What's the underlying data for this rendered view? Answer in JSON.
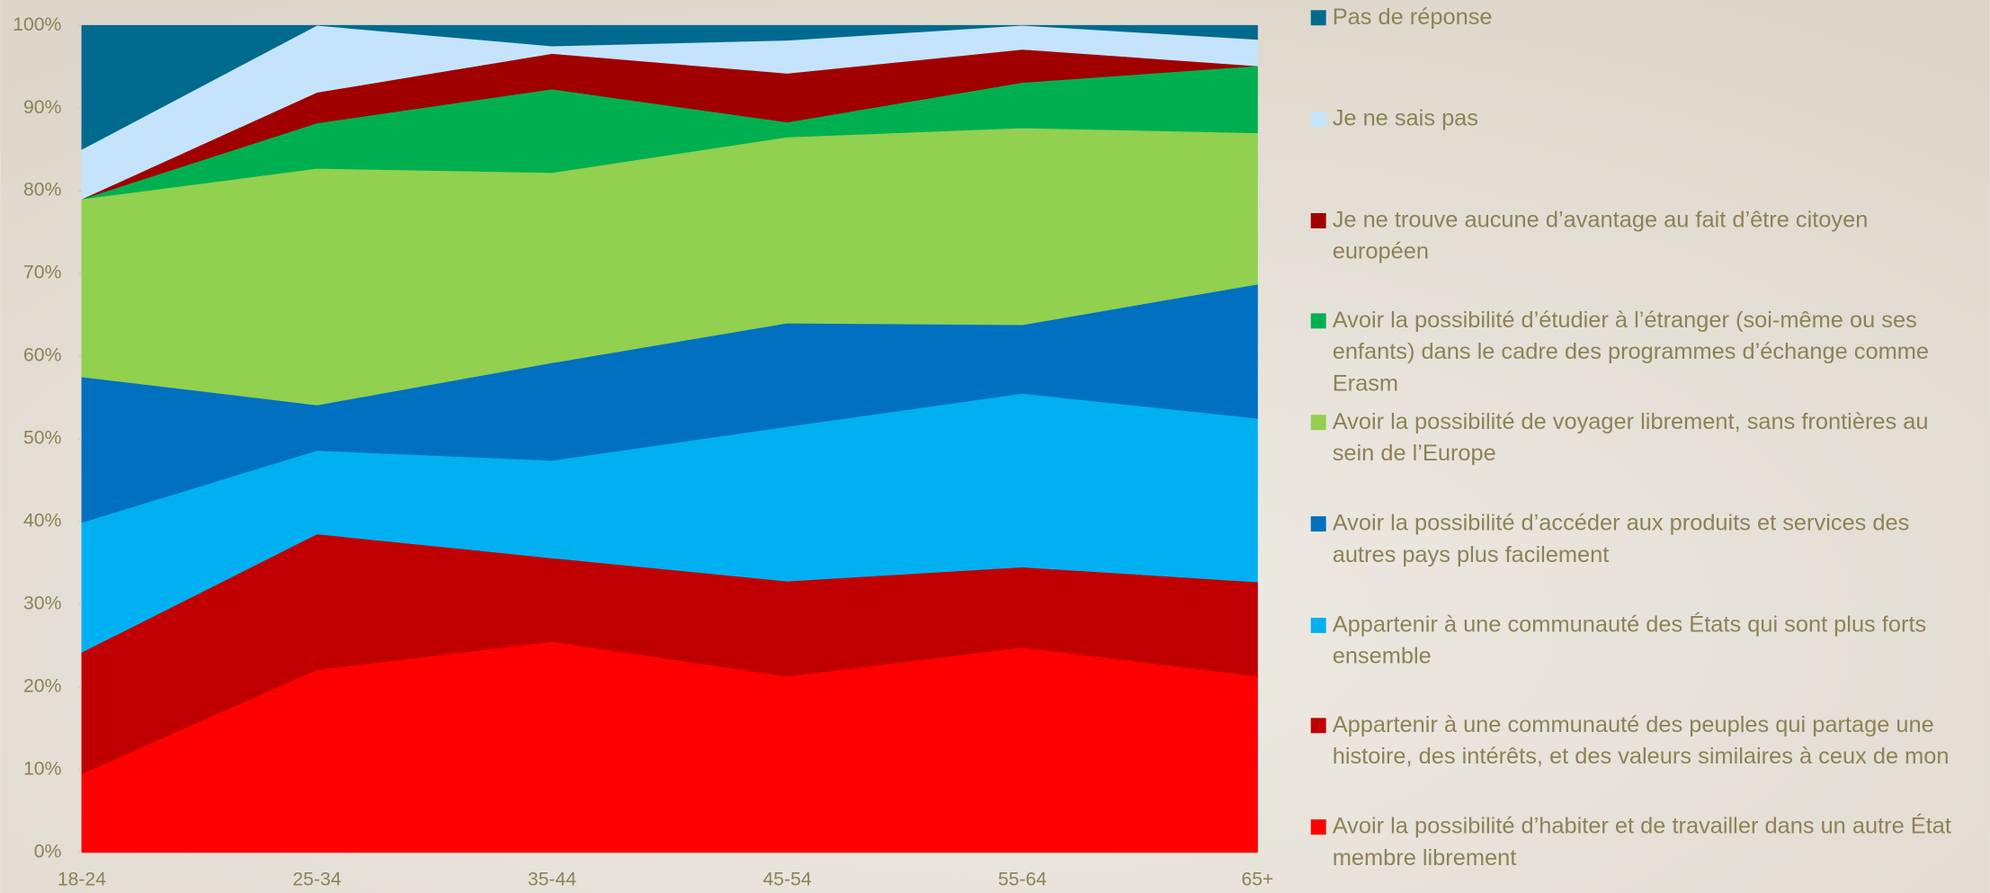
{
  "chart_data": {
    "type": "stacked-area",
    "categories": [
      "18-24",
      "25-34",
      "35-44",
      "45-54",
      "55-64",
      "65+"
    ],
    "ylim": [
      0,
      100
    ],
    "yticks": [
      {
        "value": 0,
        "label": "0%"
      },
      {
        "value": 10,
        "label": "10%"
      },
      {
        "value": 20,
        "label": "20%"
      },
      {
        "value": 30,
        "label": "30%"
      },
      {
        "value": 40,
        "label": "40%"
      },
      {
        "value": 50,
        "label": "50%"
      },
      {
        "value": 60,
        "label": "60%"
      },
      {
        "value": 70,
        "label": "70%"
      },
      {
        "value": 80,
        "label": "80%"
      },
      {
        "value": 90,
        "label": "90%"
      },
      {
        "value": 100,
        "label": "100%"
      }
    ],
    "series": [
      {
        "name": "Avoir la possibilité d’habiter et de travailler dans un autre État membre librement",
        "color": "#ff0000",
        "values": [
          9.5,
          22.1,
          25.5,
          21.3,
          24.8,
          21.3
        ]
      },
      {
        "name": "Appartenir à une communauté des peuples qui partage une histoire, des intérêts, et des valeurs similaires à ceux de mon",
        "color": "#c00000",
        "values": [
          14.7,
          16.4,
          10.1,
          11.5,
          9.7,
          11.4
        ]
      },
      {
        "name": "Appartenir à une communauté des États qui sont plus forts ensemble",
        "color": "#00b0f0",
        "values": [
          15.7,
          10.1,
          11.8,
          18.7,
          21.0,
          19.8
        ]
      },
      {
        "name": "Avoir la possibilité d’accéder aux produits et services des autres pays plus facilement",
        "color": "#0070c0",
        "values": [
          17.6,
          5.5,
          11.8,
          12.5,
          8.3,
          16.2
        ]
      },
      {
        "name": "Avoir la possibilité de voyager librement, sans frontières au sein de l’Europe",
        "color": "#92d050",
        "values": [
          21.5,
          28.6,
          23.0,
          22.5,
          23.8,
          18.3
        ]
      },
      {
        "name": "Avoir la possibilité d’étudier à l’étranger (soi-même ou ses enfants) dans le cadre des programmes d’échange comme Erasm",
        "color": "#00b050",
        "values": [
          0,
          5.5,
          10.1,
          1.8,
          5.5,
          8.1
        ]
      },
      {
        "name": "Je ne trouve aucune d’avantage au fait d’être citoyen européen",
        "color": "#a00000",
        "values": [
          0,
          3.7,
          4.3,
          5.9,
          4.0,
          0
        ]
      },
      {
        "name": "Je ne sais pas",
        "color": "#c5e4fb",
        "values": [
          6.0,
          8.1,
          0.9,
          4.0,
          2.9,
          3.2
        ]
      },
      {
        "name": "Pas de réponse",
        "color": "#006a8e",
        "values": [
          15.0,
          0,
          2.5,
          1.8,
          0,
          1.7
        ]
      }
    ]
  }
}
